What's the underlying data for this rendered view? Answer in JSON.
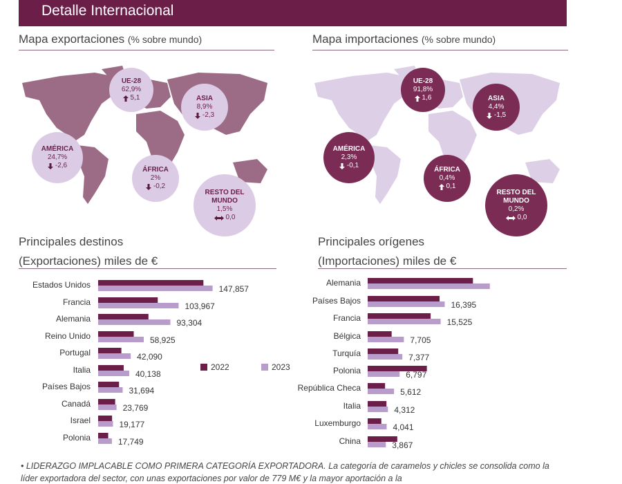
{
  "header": {
    "title": "Detalle Internacional"
  },
  "maps": [
    {
      "title": "Mapa exportaciones",
      "subtitle": "(% sobre mundo)",
      "regions": [
        {
          "name": "UE-28",
          "share": "62,9%",
          "change": "5,1",
          "direction": "up"
        },
        {
          "name": "ASIA",
          "share": "8,9%",
          "change": "-2,3",
          "direction": "down"
        },
        {
          "name": "AMÉRICA",
          "share": "24,7%",
          "change": "-2,6",
          "direction": "down"
        },
        {
          "name": "ÁFRICA",
          "share": "2%",
          "change": "-0,2",
          "direction": "down"
        },
        {
          "name": "RESTO DEL MUNDO",
          "share": "1,5%",
          "change": "0,0",
          "direction": "both"
        }
      ]
    },
    {
      "title": "Mapa importaciones",
      "subtitle": "(% sobre mundo)",
      "regions": [
        {
          "name": "UE-28",
          "share": "91,8%",
          "change": "1,6",
          "direction": "up"
        },
        {
          "name": "ASIA",
          "share": "4,4%",
          "change": "-1,5",
          "direction": "down"
        },
        {
          "name": "AMÉRICA",
          "share": "2,3%",
          "change": "-0,1",
          "direction": "down"
        },
        {
          "name": "ÁFRICA",
          "share": "0,4%",
          "change": "0,1",
          "direction": "up"
        },
        {
          "name": "RESTO DEL MUNDO",
          "share": "0,2%",
          "change": "0,0",
          "direction": "both"
        }
      ]
    }
  ],
  "chart_data": [
    {
      "type": "bar",
      "orientation": "horizontal",
      "title": "Principales destinos",
      "subtitle": "(Exportaciones) miles de €",
      "categories": [
        "Estados Unidos",
        "Francia",
        "Alemania",
        "Reino Unido",
        "Portugal",
        "Italia",
        "Países Bajos",
        "Canadá",
        "Israel",
        "Polonia"
      ],
      "legend": true,
      "series": [
        {
          "name": "2022",
          "color": "#6a1e48",
          "values": [
            136000,
            77000,
            65000,
            46000,
            30000,
            33000,
            27000,
            22000,
            18000,
            13000
          ]
        },
        {
          "name": "2023",
          "color": "#b89ccb",
          "values": [
            147857,
            103967,
            93304,
            58925,
            42090,
            40138,
            31694,
            23769,
            19177,
            17749
          ],
          "value_labels": [
            "147,857",
            "103,967",
            "93,304",
            "58,925",
            "42,090",
            "40,138",
            "31,694",
            "23,769",
            "19,177",
            "17,749"
          ]
        }
      ]
    },
    {
      "type": "bar",
      "orientation": "horizontal",
      "title": "Principales orígenes",
      "subtitle": "(Importaciones) miles de €",
      "categories": [
        "Alemania",
        "Países Bajos",
        "Francia",
        "Bélgica",
        "Turquía",
        "Polonia",
        "República Checa",
        "Italia",
        "Luxemburgo",
        "China"
      ],
      "legend": false,
      "series": [
        {
          "color": "#6a1e48",
          "values": [
            22400,
            15300,
            13400,
            5100,
            6500,
            12600,
            3700,
            4000,
            2900,
            6300
          ]
        },
        {
          "color": "#b89ccb",
          "values": [
            26000,
            16395,
            15525,
            7705,
            7377,
            6797,
            5612,
            4312,
            4041,
            3867
          ],
          "value_labels": [
            null,
            "16,395",
            "15,525",
            "7,705",
            "7,377",
            "6,797",
            "5,612",
            "4,312",
            "4,041",
            "3,867"
          ]
        }
      ]
    }
  ],
  "notes": [
    {
      "lead": "LIDERAZGO IMPLACABLE COMO PRIMERA CATEGORÍA EXPORTADORA.",
      "text": "La categoría de caramelos y chicles se consolida como la líder exportadora del sector, con unas exportaciones por valor de 779 M€ y la mayor aportación a la"
    }
  ]
}
